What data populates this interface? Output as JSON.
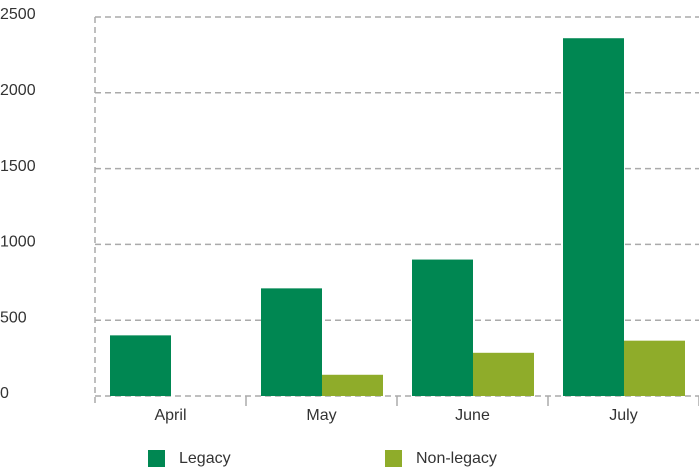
{
  "chart_data": {
    "type": "bar",
    "categories": [
      "April",
      "May",
      "June",
      "July"
    ],
    "series": [
      {
        "name": "Legacy",
        "color": "#008752",
        "values": [
          400,
          710,
          900,
          2360
        ]
      },
      {
        "name": "Non-legacy",
        "color": "#8fac2a",
        "values": [
          0,
          140,
          285,
          365
        ]
      }
    ],
    "ylim": [
      0,
      2500
    ],
    "yticks": [
      0,
      500,
      1000,
      1500,
      2000,
      2500
    ],
    "grid": true
  }
}
